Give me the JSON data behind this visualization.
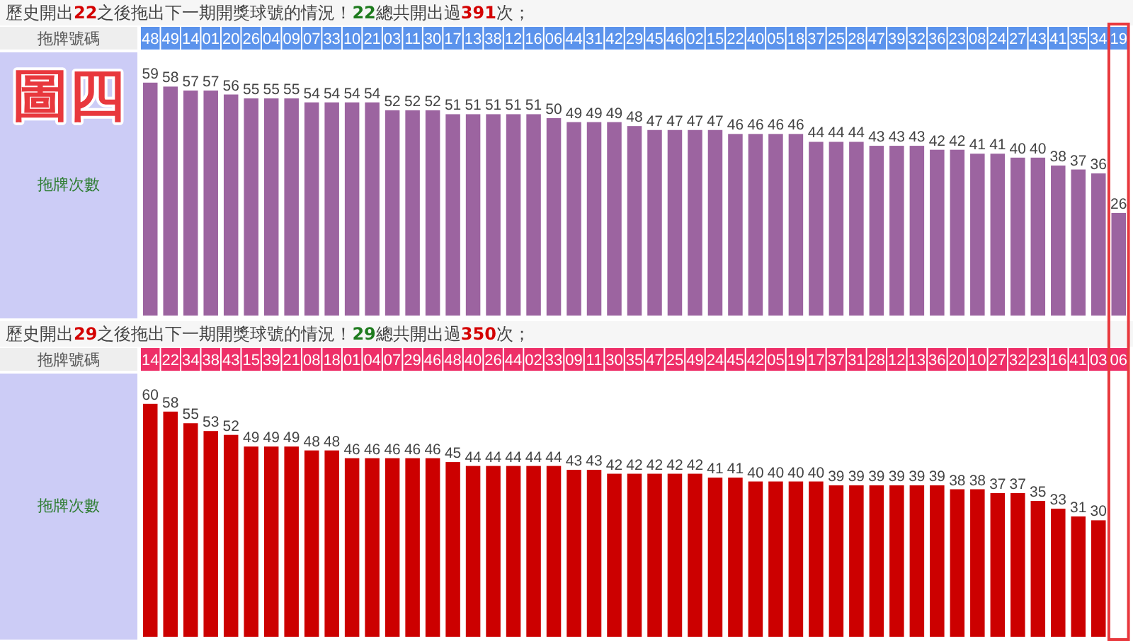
{
  "chart_data": [
    {
      "type": "bar",
      "title": "歷史開出22之後拖出下一期開獎球號的情況！22總共開出過391次；",
      "xlabel": "拖牌號碼",
      "ylabel": "拖牌次數",
      "color": "#9c64a0",
      "data_labels": true,
      "categories": [
        "48",
        "49",
        "14",
        "01",
        "20",
        "26",
        "04",
        "09",
        "07",
        "33",
        "10",
        "21",
        "03",
        "11",
        "30",
        "17",
        "13",
        "38",
        "12",
        "16",
        "06",
        "44",
        "31",
        "42",
        "29",
        "45",
        "46",
        "02",
        "15",
        "22",
        "40",
        "05",
        "18",
        "37",
        "25",
        "28",
        "47",
        "39",
        "32",
        "36",
        "23",
        "08",
        "24",
        "27",
        "43",
        "41",
        "35",
        "34",
        "19"
      ],
      "values": [
        59,
        58,
        57,
        57,
        56,
        55,
        55,
        55,
        54,
        54,
        54,
        54,
        52,
        52,
        52,
        51,
        51,
        51,
        51,
        51,
        50,
        49,
        49,
        49,
        48,
        47,
        47,
        47,
        47,
        46,
        46,
        46,
        46,
        44,
        44,
        44,
        43,
        43,
        43,
        42,
        42,
        41,
        41,
        40,
        40,
        38,
        37,
        36,
        26
      ],
      "annotations": [
        "圖四"
      ]
    },
    {
      "type": "bar",
      "title": "歷史開出29之後拖出下一期開獎球號的情況！29總共開出過350次；",
      "xlabel": "拖牌號碼",
      "ylabel": "拖牌次數",
      "color": "#cc0000",
      "data_labels": true,
      "categories": [
        "14",
        "22",
        "34",
        "38",
        "43",
        "15",
        "39",
        "21",
        "08",
        "18",
        "01",
        "04",
        "07",
        "29",
        "46",
        "48",
        "40",
        "26",
        "44",
        "02",
        "33",
        "09",
        "11",
        "30",
        "35",
        "47",
        "25",
        "49",
        "24",
        "45",
        "42",
        "05",
        "19",
        "17",
        "37",
        "31",
        "28",
        "12",
        "13",
        "36",
        "20",
        "10",
        "27",
        "32",
        "23",
        "16",
        "41",
        "03",
        "06"
      ],
      "values": [
        60,
        58,
        55,
        53,
        52,
        49,
        49,
        49,
        48,
        48,
        46,
        46,
        46,
        46,
        46,
        45,
        44,
        44,
        44,
        44,
        44,
        43,
        43,
        42,
        42,
        42,
        42,
        42,
        41,
        41,
        40,
        40,
        40,
        40,
        39,
        39,
        39,
        39,
        39,
        39,
        38,
        38,
        37,
        37,
        35,
        33,
        31,
        30,
        null
      ]
    }
  ]
}
